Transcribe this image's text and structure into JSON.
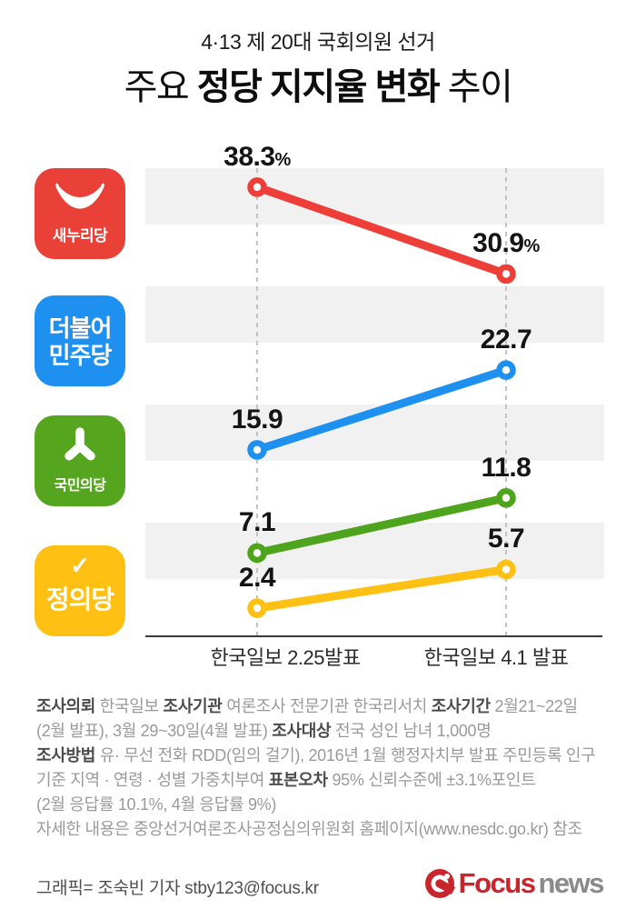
{
  "header": {
    "subtitle": "4·13 제 20대 국회의원 선거",
    "title_pre": "주요 ",
    "title_em": "정당 지지율 변화",
    "title_post": " 추이"
  },
  "parties": [
    {
      "key": "saenuri",
      "label": "새누리당",
      "color": "#e94038",
      "logo": "bowl-icon"
    },
    {
      "key": "minjoo",
      "label": "더불어민주당",
      "label_line1": "더불어",
      "label_line2": "민주당",
      "color": "#1e90f0"
    },
    {
      "key": "peoples",
      "label": "국민의당",
      "color": "#55a51f",
      "logo": "person-icon"
    },
    {
      "key": "justice",
      "label": "정의당",
      "color": "#fdc013",
      "check_glyph": "✓"
    }
  ],
  "chart_data": {
    "type": "line",
    "title": "주요 정당 지지율 변화 추이",
    "subtitle": "4·13 제 20대 국회의원 선거",
    "categories": [
      "한국일보 2.25발표",
      "한국일보 4.1 발표"
    ],
    "series": [
      {
        "key": "saenuri",
        "name": "새누리당",
        "color": "#ee3e38",
        "values": [
          38.3,
          30.9
        ],
        "labels": [
          "38.3",
          "30.9"
        ],
        "suffix": "%"
      },
      {
        "key": "minjoo",
        "name": "더불어민주당",
        "color": "#1e90f0",
        "values": [
          15.9,
          22.7
        ],
        "labels": [
          "15.9",
          "22.7"
        ],
        "suffix": ""
      },
      {
        "key": "peoples",
        "name": "국민의당",
        "color": "#4fa41e",
        "values": [
          7.1,
          11.8
        ],
        "labels": [
          "7.1",
          "11.8"
        ],
        "suffix": ""
      },
      {
        "key": "justice",
        "name": "정의당",
        "color": "#fdc013",
        "values": [
          2.4,
          5.7
        ],
        "labels": [
          "2.4",
          "5.7"
        ],
        "suffix": ""
      }
    ],
    "ylim": [
      0,
      40
    ],
    "unit": "%",
    "grid": "alternating-row-bands",
    "legend_position": "left-icons"
  },
  "survey_notes": {
    "lines": [
      [
        {
          "t": "조사의뢰 ",
          "b": true
        },
        {
          "t": "한국일보 ",
          "b": false
        },
        {
          "t": "조사기관 ",
          "b": true
        },
        {
          "t": "여론조사 전문기관 한국리서치 ",
          "b": false
        },
        {
          "t": "조사기간 ",
          "b": true
        },
        {
          "t": "2월21~22일",
          "b": false
        }
      ],
      [
        {
          "t": "(2월 발표), 3월 29~30일(4월 발표) ",
          "b": false
        },
        {
          "t": "조사대상 ",
          "b": true
        },
        {
          "t": "전국 성인 남녀 1,000명",
          "b": false
        }
      ],
      [
        {
          "t": "조사방법 ",
          "b": true
        },
        {
          "t": "유· 무선 전화 RDD(임의 걸기), 2016년 1월 행정자치부 발표 주민등록 인구",
          "b": false
        }
      ],
      [
        {
          "t": "기준 지역 · 연령 · 성별 가중치부여 ",
          "b": false
        },
        {
          "t": "표본오차 ",
          "b": true
        },
        {
          "t": "95% 신뢰수준에 ±3.1%포인트",
          "b": false
        }
      ],
      [
        {
          "t": "(2월 응답률 10.1%, 4월 응답률 9%)",
          "b": false
        }
      ],
      [
        {
          "t": "자세한 내용은 중앙선거여론조사공정심의위원회 홈페이지(www.nesdc.go.kr) 참조",
          "b": false
        }
      ]
    ]
  },
  "credit": "그래픽= 조숙빈 기자 stby123@focus.kr",
  "brand": {
    "icon": "focus-swirl-icon",
    "primary": "Focus",
    "secondary": "news",
    "primary_color": "#c9252c",
    "secondary_color": "#8a8a8a"
  }
}
